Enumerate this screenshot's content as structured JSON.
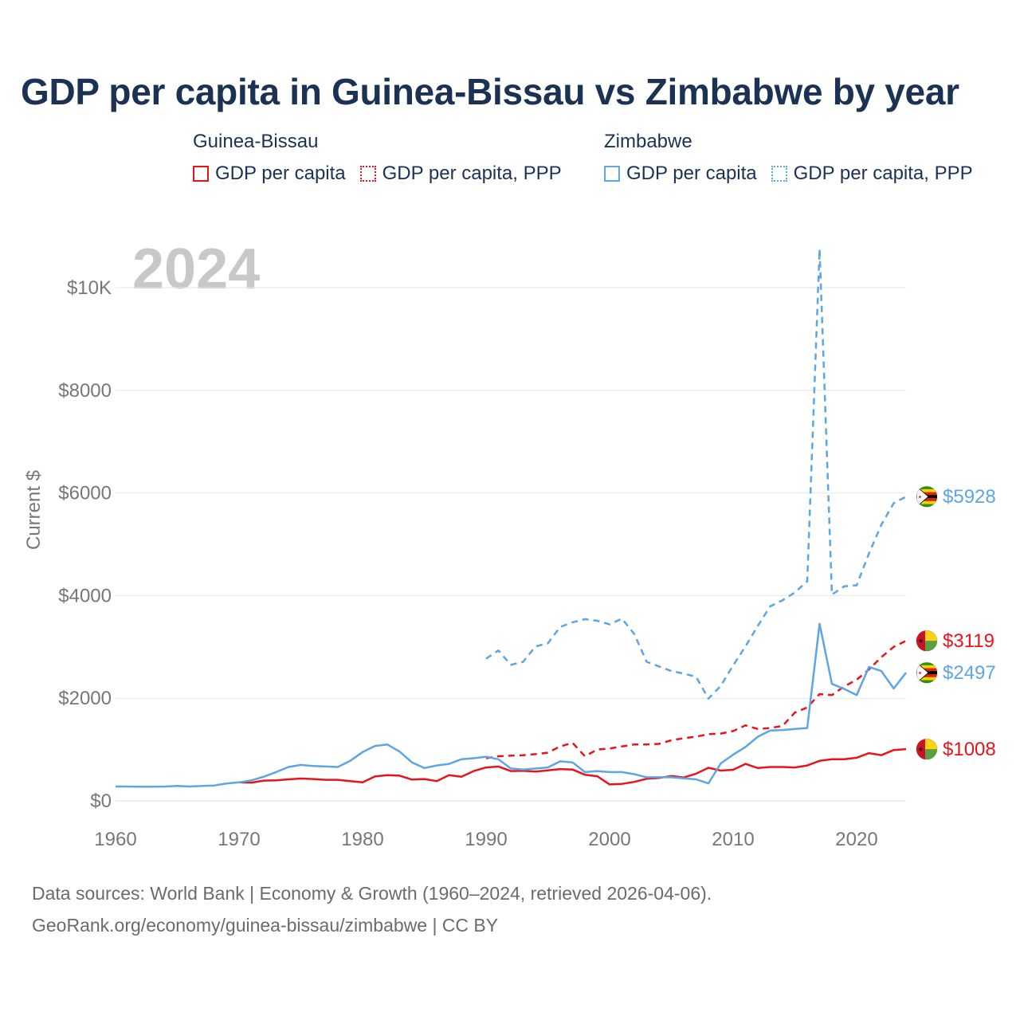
{
  "title": "GDP per capita in Guinea-Bissau vs Zimbabwe by year",
  "legend": {
    "groups": [
      {
        "name": "Guinea-Bissau",
        "color": "#e8141c",
        "items": [
          {
            "label": "GDP per capita",
            "style": "solid"
          },
          {
            "label": "GDP per capita, PPP",
            "style": "dotted"
          }
        ]
      },
      {
        "name": "Zimbabwe",
        "color": "#5da5e3",
        "items": [
          {
            "label": "GDP per capita",
            "style": "solid"
          },
          {
            "label": "GDP per capita, PPP",
            "style": "dotted"
          }
        ]
      }
    ]
  },
  "year_watermark": "2024",
  "footer": {
    "line1": "Data sources: World Bank | Economy & Growth (1960–2024, retrieved 2026-04-06).",
    "line2": "GeoRank.org/economy/guinea-bissau/zimbabwe | CC BY"
  },
  "chart_data": {
    "type": "line",
    "title": "GDP per capita in Guinea-Bissau vs Zimbabwe by year",
    "xlabel": "",
    "ylabel": "Current $",
    "xlim": [
      1960,
      2024
    ],
    "ylim": [
      0,
      10500
    ],
    "grid": true,
    "x_ticks": [
      1960,
      1970,
      1980,
      1990,
      2000,
      2010,
      2020
    ],
    "x_tick_labels": [
      "1960",
      "1970",
      "1980",
      "1990",
      "2000",
      "2010",
      "2020"
    ],
    "y_ticks": [
      0,
      2000,
      4000,
      6000,
      8000,
      10000
    ],
    "y_tick_labels": [
      "$0",
      "$2000",
      "$4000",
      "$6000",
      "$8000",
      "$10K"
    ],
    "series": [
      {
        "name": "Guinea-Bissau GDP per capita",
        "country": "Guinea-Bissau",
        "color": "#e8141c",
        "dash": "solid",
        "end_label": "$1008",
        "flag": "guinea-bissau-flag",
        "points": [
          [
            1970,
            360
          ],
          [
            1971,
            355
          ],
          [
            1972,
            395
          ],
          [
            1973,
            400
          ],
          [
            1974,
            420
          ],
          [
            1975,
            435
          ],
          [
            1976,
            425
          ],
          [
            1977,
            410
          ],
          [
            1978,
            410
          ],
          [
            1979,
            385
          ],
          [
            1980,
            360
          ],
          [
            1981,
            475
          ],
          [
            1982,
            500
          ],
          [
            1983,
            490
          ],
          [
            1984,
            415
          ],
          [
            1985,
            425
          ],
          [
            1986,
            385
          ],
          [
            1987,
            500
          ],
          [
            1988,
            470
          ],
          [
            1989,
            580
          ],
          [
            1990,
            650
          ],
          [
            1991,
            670
          ],
          [
            1992,
            580
          ],
          [
            1993,
            585
          ],
          [
            1994,
            570
          ],
          [
            1995,
            595
          ],
          [
            1996,
            620
          ],
          [
            1997,
            610
          ],
          [
            1998,
            510
          ],
          [
            1999,
            480
          ],
          [
            2000,
            320
          ],
          [
            2001,
            330
          ],
          [
            2002,
            370
          ],
          [
            2003,
            430
          ],
          [
            2004,
            445
          ],
          [
            2005,
            485
          ],
          [
            2006,
            455
          ],
          [
            2007,
            530
          ],
          [
            2008,
            645
          ],
          [
            2009,
            590
          ],
          [
            2010,
            605
          ],
          [
            2011,
            720
          ],
          [
            2012,
            640
          ],
          [
            2013,
            660
          ],
          [
            2014,
            660
          ],
          [
            2015,
            650
          ],
          [
            2016,
            690
          ],
          [
            2017,
            780
          ],
          [
            2018,
            810
          ],
          [
            2019,
            810
          ],
          [
            2020,
            840
          ],
          [
            2021,
            930
          ],
          [
            2022,
            890
          ],
          [
            2023,
            990
          ],
          [
            2024,
            1008
          ]
        ]
      },
      {
        "name": "Guinea-Bissau GDP per capita, PPP",
        "country": "Guinea-Bissau",
        "color": "#e8141c",
        "dash": "dashed",
        "end_label": "$3119",
        "flag": "guinea-bissau-flag",
        "points": [
          [
            1990,
            830
          ],
          [
            1991,
            870
          ],
          [
            1992,
            880
          ],
          [
            1993,
            890
          ],
          [
            1994,
            910
          ],
          [
            1995,
            940
          ],
          [
            1996,
            1060
          ],
          [
            1997,
            1130
          ],
          [
            1998,
            870
          ],
          [
            1999,
            1000
          ],
          [
            2000,
            1020
          ],
          [
            2001,
            1060
          ],
          [
            2002,
            1100
          ],
          [
            2003,
            1100
          ],
          [
            2004,
            1110
          ],
          [
            2005,
            1180
          ],
          [
            2006,
            1220
          ],
          [
            2007,
            1250
          ],
          [
            2008,
            1300
          ],
          [
            2009,
            1310
          ],
          [
            2010,
            1360
          ],
          [
            2011,
            1470
          ],
          [
            2012,
            1400
          ],
          [
            2013,
            1420
          ],
          [
            2014,
            1460
          ],
          [
            2015,
            1720
          ],
          [
            2016,
            1820
          ],
          [
            2017,
            2080
          ],
          [
            2018,
            2060
          ],
          [
            2019,
            2230
          ],
          [
            2020,
            2360
          ],
          [
            2021,
            2560
          ],
          [
            2022,
            2800
          ],
          [
            2023,
            3000
          ],
          [
            2024,
            3119
          ]
        ]
      },
      {
        "name": "Zimbabwe GDP per capita",
        "country": "Zimbabwe",
        "color": "#5da5e3",
        "dash": "solid",
        "end_label": "$2497",
        "flag": "zimbabwe-flag",
        "points": [
          [
            1960,
            280
          ],
          [
            1961,
            280
          ],
          [
            1962,
            275
          ],
          [
            1963,
            275
          ],
          [
            1964,
            280
          ],
          [
            1965,
            290
          ],
          [
            1966,
            280
          ],
          [
            1967,
            290
          ],
          [
            1968,
            300
          ],
          [
            1969,
            340
          ],
          [
            1970,
            360
          ],
          [
            1971,
            400
          ],
          [
            1972,
            470
          ],
          [
            1973,
            560
          ],
          [
            1974,
            660
          ],
          [
            1975,
            700
          ],
          [
            1976,
            680
          ],
          [
            1977,
            670
          ],
          [
            1978,
            660
          ],
          [
            1979,
            780
          ],
          [
            1980,
            950
          ],
          [
            1981,
            1070
          ],
          [
            1982,
            1100
          ],
          [
            1983,
            960
          ],
          [
            1984,
            750
          ],
          [
            1985,
            640
          ],
          [
            1986,
            690
          ],
          [
            1987,
            720
          ],
          [
            1988,
            810
          ],
          [
            1989,
            830
          ],
          [
            1990,
            860
          ],
          [
            1991,
            810
          ],
          [
            1992,
            630
          ],
          [
            1993,
            610
          ],
          [
            1994,
            630
          ],
          [
            1995,
            650
          ],
          [
            1996,
            770
          ],
          [
            1997,
            750
          ],
          [
            1998,
            560
          ],
          [
            1999,
            580
          ],
          [
            2000,
            560
          ],
          [
            2001,
            560
          ],
          [
            2002,
            520
          ],
          [
            2003,
            460
          ],
          [
            2004,
            460
          ],
          [
            2005,
            460
          ],
          [
            2006,
            440
          ],
          [
            2007,
            420
          ],
          [
            2008,
            340
          ],
          [
            2009,
            730
          ],
          [
            2010,
            900
          ],
          [
            2011,
            1050
          ],
          [
            2012,
            1250
          ],
          [
            2013,
            1370
          ],
          [
            2014,
            1380
          ],
          [
            2015,
            1400
          ],
          [
            2016,
            1420
          ],
          [
            2017,
            3450
          ],
          [
            2018,
            2280
          ],
          [
            2019,
            2180
          ],
          [
            2020,
            2060
          ],
          [
            2021,
            2610
          ],
          [
            2022,
            2530
          ],
          [
            2023,
            2190
          ],
          [
            2024,
            2497
          ]
        ]
      },
      {
        "name": "Zimbabwe GDP per capita, PPP",
        "country": "Zimbabwe",
        "color": "#5da5e3",
        "dash": "dashed",
        "end_label": "$5928",
        "flag": "zimbabwe-flag",
        "points": [
          [
            1990,
            2770
          ],
          [
            1991,
            2930
          ],
          [
            1992,
            2650
          ],
          [
            1993,
            2710
          ],
          [
            1994,
            3010
          ],
          [
            1995,
            3070
          ],
          [
            1996,
            3390
          ],
          [
            1997,
            3480
          ],
          [
            1998,
            3540
          ],
          [
            1999,
            3510
          ],
          [
            2000,
            3440
          ],
          [
            2001,
            3550
          ],
          [
            2002,
            3250
          ],
          [
            2003,
            2710
          ],
          [
            2004,
            2620
          ],
          [
            2005,
            2530
          ],
          [
            2006,
            2480
          ],
          [
            2007,
            2420
          ],
          [
            2008,
            1990
          ],
          [
            2009,
            2240
          ],
          [
            2010,
            2640
          ],
          [
            2011,
            3010
          ],
          [
            2012,
            3410
          ],
          [
            2013,
            3790
          ],
          [
            2014,
            3910
          ],
          [
            2015,
            4060
          ],
          [
            2016,
            4280
          ],
          [
            2017,
            10750
          ],
          [
            2018,
            4020
          ],
          [
            2019,
            4180
          ],
          [
            2020,
            4200
          ],
          [
            2021,
            4820
          ],
          [
            2022,
            5380
          ],
          [
            2023,
            5800
          ],
          [
            2024,
            5928
          ]
        ]
      }
    ]
  }
}
